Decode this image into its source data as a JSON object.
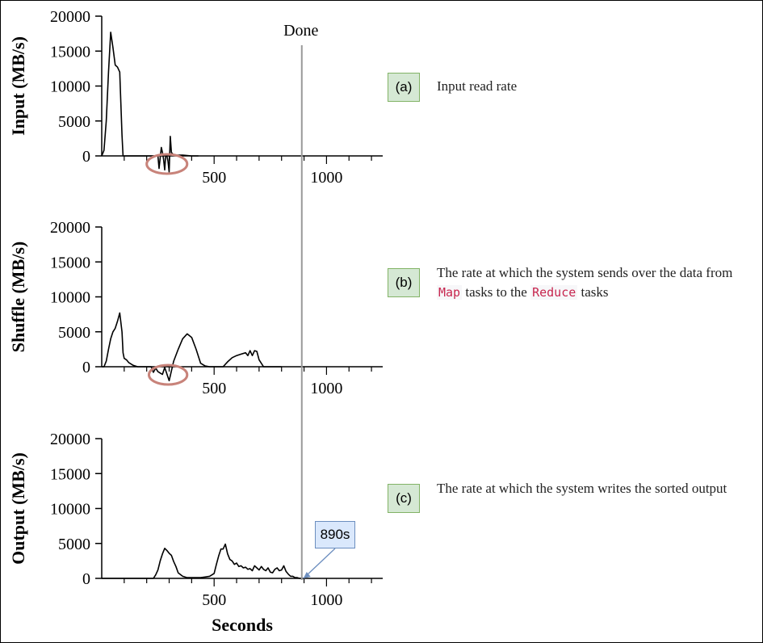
{
  "chart_data": [
    {
      "type": "line",
      "ylabel": "Input (MB/s)",
      "xlabel": "",
      "ylim": [
        0,
        20000
      ],
      "xlim": [
        0,
        1250
      ],
      "xticks": [
        500,
        1000
      ],
      "yticks": [
        0,
        5000,
        10000,
        15000,
        20000
      ],
      "series": [
        {
          "x": [
            0,
            10,
            20,
            30,
            40,
            50,
            60,
            70,
            80,
            90,
            95,
            100,
            110,
            250,
            255,
            260,
            265,
            270,
            275,
            280,
            285,
            290,
            295,
            300,
            305,
            310,
            315,
            320,
            325,
            330,
            340,
            360,
            380,
            400,
            420,
            430
          ],
          "y": [
            0,
            800,
            5000,
            12000,
            17700,
            15500,
            13000,
            12700,
            12000,
            3000,
            0,
            0,
            0,
            0,
            -1800,
            -300,
            1200,
            500,
            -500,
            -2000,
            300,
            0,
            -800,
            -2300,
            2800,
            500,
            300,
            200,
            200,
            100,
            100,
            100,
            50,
            0,
            0,
            0
          ]
        }
      ],
      "annotations": [
        {
          "type": "ellipse-highlight",
          "x_range": [
            200,
            380
          ]
        }
      ]
    },
    {
      "type": "line",
      "ylabel": "Shuffle (MB/s)",
      "xlabel": "",
      "ylim": [
        0,
        20000
      ],
      "xlim": [
        0,
        1250
      ],
      "xticks": [
        500,
        1000
      ],
      "yticks": [
        0,
        5000,
        10000,
        15000,
        20000
      ],
      "series": [
        {
          "x": [
            0,
            10,
            20,
            30,
            40,
            50,
            60,
            70,
            80,
            90,
            95,
            100,
            110,
            120,
            140,
            160,
            180,
            200,
            220,
            230,
            240,
            250,
            260,
            270,
            280,
            300,
            320,
            340,
            360,
            380,
            400,
            420,
            440,
            460,
            480,
            500,
            520,
            540,
            560,
            580,
            600,
            620,
            640,
            650,
            660,
            670,
            680,
            690,
            700,
            720,
            740,
            760,
            800
          ],
          "y": [
            0,
            0,
            800,
            2500,
            4000,
            5000,
            5500,
            6500,
            7700,
            5000,
            2000,
            1200,
            1000,
            600,
            200,
            0,
            0,
            0,
            0,
            -800,
            -200,
            -700,
            -900,
            -1100,
            -100,
            -2000,
            800,
            2500,
            4000,
            4700,
            4200,
            2500,
            500,
            100,
            0,
            0,
            0,
            0,
            700,
            1300,
            1600,
            1800,
            2000,
            1600,
            2300,
            1600,
            2300,
            2200,
            1000,
            0,
            0,
            0,
            0
          ]
        }
      ],
      "annotations": [
        {
          "type": "ellipse-highlight",
          "x_range": [
            210,
            380
          ]
        }
      ]
    },
    {
      "type": "line",
      "ylabel": "Output (MB/s)",
      "xlabel": "Seconds",
      "ylim": [
        0,
        20000
      ],
      "xlim": [
        0,
        1250
      ],
      "xticks": [
        500,
        1000
      ],
      "yticks": [
        0,
        5000,
        10000,
        15000,
        20000
      ],
      "series": [
        {
          "x": [
            0,
            100,
            200,
            230,
            240,
            250,
            260,
            270,
            280,
            290,
            300,
            310,
            320,
            330,
            340,
            360,
            380,
            400,
            420,
            440,
            460,
            480,
            490,
            500,
            510,
            520,
            530,
            540,
            550,
            560,
            570,
            580,
            590,
            600,
            610,
            620,
            630,
            640,
            650,
            660,
            670,
            680,
            690,
            700,
            710,
            720,
            730,
            740,
            750,
            760,
            770,
            780,
            790,
            800,
            810,
            820,
            830,
            840,
            850,
            860,
            870,
            880,
            890
          ],
          "y": [
            0,
            0,
            0,
            0,
            500,
            1200,
            2500,
            3500,
            4300,
            4000,
            3600,
            3300,
            2400,
            1700,
            800,
            300,
            100,
            100,
            100,
            100,
            200,
            300,
            500,
            700,
            2000,
            3200,
            4200,
            4200,
            4900,
            3500,
            2700,
            2500,
            2000,
            2200,
            1700,
            1800,
            1500,
            1600,
            1300,
            1400,
            1100,
            1800,
            1500,
            1200,
            1700,
            1300,
            1100,
            1500,
            900,
            800,
            1300,
            1500,
            1100,
            1200,
            1800,
            1000,
            600,
            300,
            300,
            100,
            100,
            0,
            0
          ]
        }
      ],
      "annotations": [
        {
          "type": "callout",
          "text": "890s",
          "x": 890,
          "y": 0
        }
      ]
    }
  ],
  "done_marker": {
    "label": "Done",
    "x": 890
  },
  "tags": {
    "a": "(a)",
    "b": "(b)",
    "c": "(c)"
  },
  "descriptions": {
    "a": "Input read rate",
    "b_part1": "The rate at which the system sends over the data from ",
    "b_code1": "Map",
    "b_part2": " tasks to the ",
    "b_code2": "Reduce",
    "b_part3": " tasks",
    "c": "The rate at which the system writes the sorted output"
  },
  "callout_text": "890s",
  "colors": {
    "line": "#000000",
    "done_line": "#999999",
    "highlight": "#c8837a",
    "tag_bg": "#d5e8d4",
    "callout_bg": "#dae8fc"
  }
}
